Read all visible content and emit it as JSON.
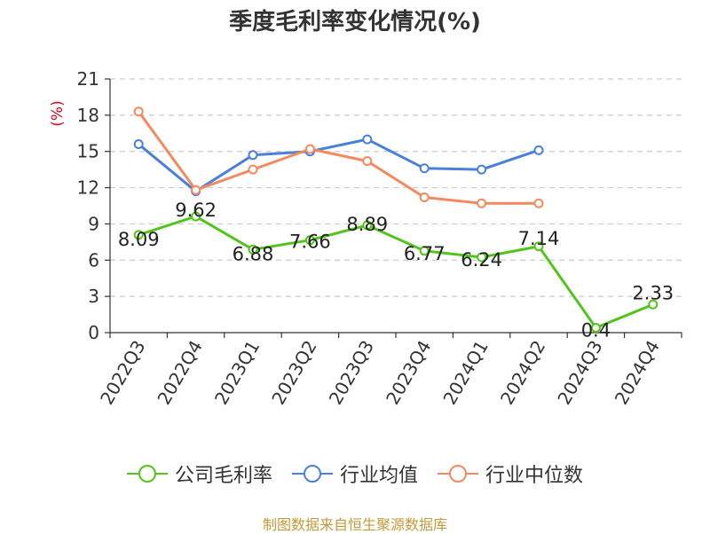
{
  "chart_data": {
    "type": "line",
    "title": "季度毛利率变化情况(%)",
    "ylabel": "(%)",
    "xlabel": "",
    "ylim": [
      0,
      21
    ],
    "yticks": [
      0,
      3,
      6,
      9,
      12,
      15,
      18,
      21
    ],
    "grid": true,
    "legend_position": "bottom",
    "categories": [
      "2022Q3",
      "2022Q4",
      "2023Q1",
      "2023Q2",
      "2023Q3",
      "2023Q4",
      "2024Q1",
      "2024Q2",
      "2024Q3",
      "2024Q4"
    ],
    "series": [
      {
        "name": "公司毛利率",
        "color": "#52c41a",
        "values": [
          8.09,
          9.62,
          6.88,
          7.66,
          8.89,
          6.77,
          6.24,
          7.14,
          0.4,
          2.33
        ],
        "labels": [
          "8.09",
          "9.62",
          "6.88",
          "7.66",
          "8.89",
          "6.77",
          "6.24",
          "7.14",
          "0.4",
          "2.33"
        ]
      },
      {
        "name": "行业均值",
        "color": "#4a7fdc",
        "values": [
          15.6,
          11.7,
          14.7,
          15.0,
          16.0,
          13.6,
          13.5,
          15.1,
          null,
          null
        ]
      },
      {
        "name": "行业中位数",
        "color": "#f4895f",
        "values": [
          18.3,
          11.8,
          13.5,
          15.2,
          14.2,
          11.2,
          10.7,
          10.7,
          null,
          null
        ]
      }
    ]
  },
  "footer": {
    "source": "制图数据来自恒生聚源数据库"
  }
}
